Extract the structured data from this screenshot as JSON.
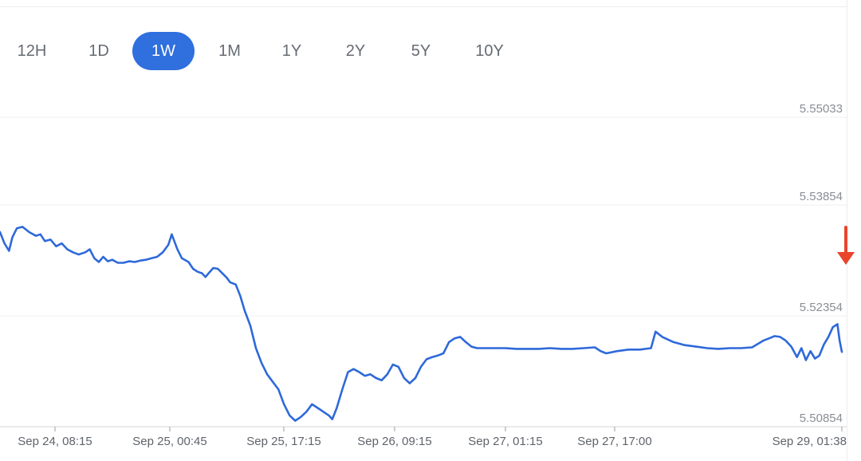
{
  "range_tabs": [
    "12H",
    "1D",
    "1W",
    "1M",
    "1Y",
    "2Y",
    "5Y",
    "10Y"
  ],
  "active_range": "1W",
  "colors": {
    "line": "#2e69d9",
    "accent": "#2f6fde",
    "arrow": "#e8452c"
  },
  "chart_data": {
    "type": "line",
    "title": "",
    "xlabel": "",
    "ylabel": "",
    "x_tick_labels": [
      "Sep 24, 08:15",
      "Sep 25, 00:45",
      "Sep 25, 17:15",
      "Sep 26, 09:15",
      "Sep 27, 01:15",
      "Sep 27, 17:00",
      "Sep 29, 01:38"
    ],
    "y_tick_labels": [
      "5.55033",
      "5.53854",
      "5.52354",
      "5.50854"
    ],
    "ylim": [
      5.5085,
      5.5524
    ],
    "grid": true,
    "legend": "none",
    "annotation": "down-arrow marker at latest value",
    "series": [
      {
        "values": [
          [
            0.0,
            5.5345
          ],
          [
            0.4,
            5.533
          ],
          [
            0.8,
            5.532
          ],
          [
            1.1,
            5.5338
          ],
          [
            1.5,
            5.535
          ],
          [
            2.0,
            5.5352
          ],
          [
            2.6,
            5.5345
          ],
          [
            3.2,
            5.534
          ],
          [
            3.6,
            5.5342
          ],
          [
            4.0,
            5.5333
          ],
          [
            4.5,
            5.5335
          ],
          [
            5.0,
            5.5326
          ],
          [
            5.5,
            5.533
          ],
          [
            6.0,
            5.5322
          ],
          [
            6.5,
            5.5318
          ],
          [
            7.0,
            5.5315
          ],
          [
            7.6,
            5.5318
          ],
          [
            8.0,
            5.5322
          ],
          [
            8.4,
            5.531
          ],
          [
            8.8,
            5.5305
          ],
          [
            9.2,
            5.5312
          ],
          [
            9.6,
            5.5306
          ],
          [
            10.0,
            5.5308
          ],
          [
            10.5,
            5.5304
          ],
          [
            11.0,
            5.5304
          ],
          [
            11.5,
            5.5306
          ],
          [
            12.0,
            5.5305
          ],
          [
            12.5,
            5.5307
          ],
          [
            13.0,
            5.5308
          ],
          [
            13.5,
            5.531
          ],
          [
            14.0,
            5.5312
          ],
          [
            14.5,
            5.5318
          ],
          [
            15.0,
            5.5328
          ],
          [
            15.3,
            5.5342
          ],
          [
            15.8,
            5.5322
          ],
          [
            16.2,
            5.531
          ],
          [
            16.8,
            5.5305
          ],
          [
            17.2,
            5.5296
          ],
          [
            17.6,
            5.5292
          ],
          [
            18.0,
            5.529
          ],
          [
            18.3,
            5.5285
          ],
          [
            18.7,
            5.5292
          ],
          [
            19.0,
            5.5297
          ],
          [
            19.4,
            5.5296
          ],
          [
            19.8,
            5.529
          ],
          [
            20.2,
            5.5284
          ],
          [
            20.5,
            5.5278
          ],
          [
            21.0,
            5.5275
          ],
          [
            21.4,
            5.526
          ],
          [
            21.8,
            5.524
          ],
          [
            22.3,
            5.522
          ],
          [
            22.8,
            5.519
          ],
          [
            23.3,
            5.517
          ],
          [
            23.8,
            5.5155
          ],
          [
            24.3,
            5.5145
          ],
          [
            24.8,
            5.5135
          ],
          [
            25.3,
            5.5115
          ],
          [
            25.8,
            5.51
          ],
          [
            26.3,
            5.5093
          ],
          [
            26.8,
            5.5098
          ],
          [
            27.3,
            5.5105
          ],
          [
            27.8,
            5.5115
          ],
          [
            28.3,
            5.511
          ],
          [
            28.8,
            5.5105
          ],
          [
            29.3,
            5.51
          ],
          [
            29.6,
            5.5095
          ],
          [
            30.0,
            5.511
          ],
          [
            30.5,
            5.5135
          ],
          [
            31.0,
            5.5158
          ],
          [
            31.5,
            5.5162
          ],
          [
            32.0,
            5.5158
          ],
          [
            32.5,
            5.5153
          ],
          [
            33.0,
            5.5155
          ],
          [
            33.5,
            5.515
          ],
          [
            34.0,
            5.5147
          ],
          [
            34.5,
            5.5155
          ],
          [
            35.0,
            5.5168
          ],
          [
            35.5,
            5.5165
          ],
          [
            36.0,
            5.515
          ],
          [
            36.5,
            5.5143
          ],
          [
            37.0,
            5.515
          ],
          [
            37.5,
            5.5165
          ],
          [
            38.0,
            5.5175
          ],
          [
            38.5,
            5.5178
          ],
          [
            39.0,
            5.518
          ],
          [
            39.5,
            5.5183
          ],
          [
            40.0,
            5.5198
          ],
          [
            40.5,
            5.5203
          ],
          [
            41.0,
            5.5205
          ],
          [
            41.5,
            5.5198
          ],
          [
            42.0,
            5.5192
          ],
          [
            42.5,
            5.519
          ],
          [
            43.0,
            5.519
          ],
          [
            43.5,
            5.519
          ],
          [
            44.0,
            5.519
          ],
          [
            45.0,
            5.519
          ],
          [
            46.0,
            5.5189
          ],
          [
            47.0,
            5.5189
          ],
          [
            48.0,
            5.5189
          ],
          [
            49.0,
            5.519
          ],
          [
            50.0,
            5.5189
          ],
          [
            51.0,
            5.5189
          ],
          [
            52.0,
            5.519
          ],
          [
            53.0,
            5.5191
          ],
          [
            53.5,
            5.5186
          ],
          [
            54.0,
            5.5183
          ],
          [
            55.0,
            5.5186
          ],
          [
            56.0,
            5.5188
          ],
          [
            57.0,
            5.5188
          ],
          [
            58.0,
            5.519
          ],
          [
            58.4,
            5.5212
          ],
          [
            59.0,
            5.5205
          ],
          [
            60.0,
            5.5198
          ],
          [
            61.0,
            5.5194
          ],
          [
            62.0,
            5.5192
          ],
          [
            63.0,
            5.519
          ],
          [
            64.0,
            5.5189
          ],
          [
            65.0,
            5.519
          ],
          [
            66.0,
            5.519
          ],
          [
            67.0,
            5.5191
          ],
          [
            68.0,
            5.52
          ],
          [
            68.5,
            5.5203
          ],
          [
            69.0,
            5.5206
          ],
          [
            69.5,
            5.5205
          ],
          [
            70.0,
            5.52
          ],
          [
            70.5,
            5.5192
          ],
          [
            71.0,
            5.5178
          ],
          [
            71.4,
            5.519
          ],
          [
            71.8,
            5.5174
          ],
          [
            72.2,
            5.5186
          ],
          [
            72.6,
            5.5176
          ],
          [
            73.0,
            5.518
          ],
          [
            73.4,
            5.5195
          ],
          [
            73.8,
            5.5205
          ],
          [
            74.2,
            5.5218
          ],
          [
            74.6,
            5.5222
          ],
          [
            74.8,
            5.52
          ],
          [
            75.0,
            5.5185
          ]
        ]
      }
    ]
  }
}
